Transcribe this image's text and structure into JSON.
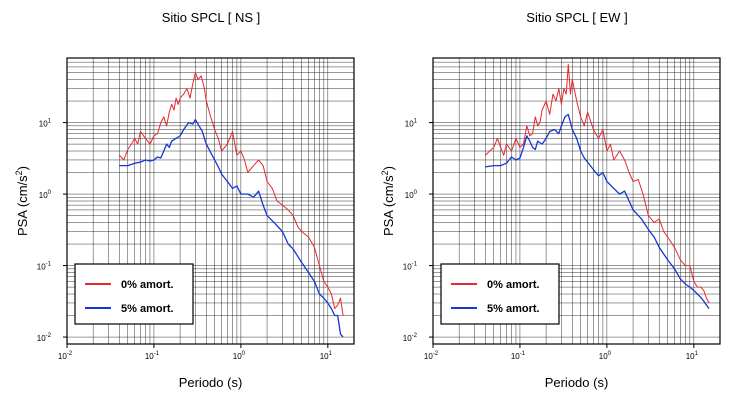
{
  "chart_data": [
    {
      "type": "line",
      "title": "Sitio SPCL [ NS ]",
      "title_parts": {
        "main": "Sitio SPCL [ NS ]"
      },
      "xlabel": "Periodo (s)",
      "ylabel": {
        "text": "PSA (cm/s",
        "sup": "2",
        "close": ")"
      },
      "x_scale": "log",
      "y_scale": "log",
      "xlim": [
        0.01,
        20
      ],
      "ylim": [
        0.008,
        80
      ],
      "grid": true,
      "legend_position": "bottom-left",
      "x_ticks": [
        {
          "base": "10",
          "exp": "-2"
        },
        {
          "base": "10",
          "exp": "-1"
        },
        {
          "base": "10",
          "exp": "0"
        },
        {
          "base": "10",
          "exp": "1"
        }
      ],
      "y_ticks": [
        {
          "base": "10",
          "exp": "-2"
        },
        {
          "base": "10",
          "exp": "-1"
        },
        {
          "base": "10",
          "exp": "0"
        },
        {
          "base": "10",
          "exp": "1"
        }
      ],
      "series": [
        {
          "name": "0% amort.",
          "color": "#e8262d",
          "x": [
            0.04,
            0.045,
            0.05,
            0.055,
            0.06,
            0.065,
            0.07,
            0.08,
            0.09,
            0.1,
            0.11,
            0.12,
            0.13,
            0.14,
            0.15,
            0.16,
            0.17,
            0.18,
            0.19,
            0.2,
            0.22,
            0.24,
            0.26,
            0.28,
            0.3,
            0.32,
            0.35,
            0.38,
            0.4,
            0.45,
            0.5,
            0.55,
            0.6,
            0.7,
            0.8,
            0.9,
            1.0,
            1.1,
            1.2,
            1.4,
            1.6,
            1.8,
            2.0,
            2.3,
            2.6,
            3.0,
            3.5,
            4.0,
            4.5,
            5.0,
            6.0,
            7.0,
            8.0,
            9.0,
            10.0,
            11.0,
            12.0,
            13.0,
            14.0,
            15.0
          ],
          "y": [
            3.5,
            3.0,
            4.2,
            5.0,
            6.0,
            5.0,
            7.5,
            6.0,
            5.0,
            6.5,
            7.0,
            10.0,
            12.0,
            9.0,
            14.0,
            18.0,
            15.0,
            22.0,
            18.0,
            22.0,
            25.0,
            30.0,
            22.0,
            35.0,
            50.0,
            40.0,
            45.0,
            30.0,
            20.0,
            12.0,
            8.0,
            6.0,
            4.0,
            5.0,
            7.5,
            3.5,
            4.0,
            3.0,
            2.0,
            2.5,
            3.0,
            2.5,
            1.5,
            1.2,
            0.8,
            0.7,
            0.6,
            0.5,
            0.35,
            0.3,
            0.25,
            0.18,
            0.1,
            0.06,
            0.05,
            0.04,
            0.025,
            0.028,
            0.035,
            0.02
          ]
        },
        {
          "name": "5% amort.",
          "color": "#1437d6",
          "x": [
            0.04,
            0.05,
            0.06,
            0.07,
            0.08,
            0.09,
            0.1,
            0.11,
            0.12,
            0.13,
            0.14,
            0.15,
            0.16,
            0.18,
            0.2,
            0.22,
            0.25,
            0.28,
            0.3,
            0.33,
            0.36,
            0.4,
            0.45,
            0.5,
            0.55,
            0.6,
            0.7,
            0.8,
            0.9,
            1.0,
            1.2,
            1.4,
            1.6,
            1.8,
            2.0,
            2.5,
            3.0,
            3.5,
            4.0,
            5.0,
            6.0,
            7.0,
            8.0,
            9.0,
            10.0,
            11.0,
            12.0,
            13.0,
            14.0,
            15.0
          ],
          "y": [
            2.5,
            2.5,
            2.7,
            2.8,
            3.0,
            2.9,
            3.0,
            3.3,
            3.2,
            4.0,
            5.0,
            4.5,
            5.5,
            6.0,
            6.5,
            8.0,
            10.0,
            9.5,
            11.0,
            9.0,
            7.5,
            5.0,
            3.8,
            3.0,
            2.4,
            1.9,
            1.5,
            1.2,
            1.3,
            1.0,
            1.0,
            0.9,
            1.1,
            0.7,
            0.5,
            0.38,
            0.3,
            0.2,
            0.17,
            0.11,
            0.08,
            0.06,
            0.04,
            0.035,
            0.03,
            0.025,
            0.02,
            0.02,
            0.011,
            0.01
          ]
        }
      ]
    },
    {
      "type": "line",
      "title": "Sitio SPCL [ EW ]",
      "title_parts": {
        "main": "Sitio SPCL [ EW ]"
      },
      "xlabel": "Periodo (s)",
      "ylabel": {
        "text": "PSA (cm/s",
        "sup": "2",
        "close": ")"
      },
      "x_scale": "log",
      "y_scale": "log",
      "xlim": [
        0.01,
        20
      ],
      "ylim": [
        0.008,
        80
      ],
      "grid": true,
      "legend_position": "bottom-left",
      "x_ticks": [
        {
          "base": "10",
          "exp": "-2"
        },
        {
          "base": "10",
          "exp": "-1"
        },
        {
          "base": "10",
          "exp": "0"
        },
        {
          "base": "10",
          "exp": "1"
        }
      ],
      "y_ticks": [
        {
          "base": "10",
          "exp": "-2"
        },
        {
          "base": "10",
          "exp": "-1"
        },
        {
          "base": "10",
          "exp": "0"
        },
        {
          "base": "10",
          "exp": "1"
        }
      ],
      "series": [
        {
          "name": "0% amort.",
          "color": "#e8262d",
          "x": [
            0.04,
            0.045,
            0.05,
            0.055,
            0.06,
            0.065,
            0.07,
            0.08,
            0.09,
            0.1,
            0.11,
            0.12,
            0.13,
            0.14,
            0.15,
            0.16,
            0.17,
            0.18,
            0.2,
            0.22,
            0.24,
            0.26,
            0.28,
            0.3,
            0.32,
            0.34,
            0.36,
            0.38,
            0.4,
            0.45,
            0.5,
            0.55,
            0.6,
            0.7,
            0.8,
            0.9,
            1.0,
            1.1,
            1.2,
            1.4,
            1.6,
            1.8,
            2.0,
            2.3,
            2.6,
            3.0,
            3.5,
            4.0,
            4.5,
            5.0,
            6.0,
            7.0,
            8.0,
            9.0,
            10.0,
            11.0,
            12.0,
            13.0,
            14.0,
            15.0
          ],
          "y": [
            3.5,
            4.0,
            4.5,
            6.0,
            4.5,
            3.5,
            5.0,
            4.0,
            6.0,
            4.5,
            5.0,
            9.0,
            6.5,
            7.0,
            12.0,
            9.0,
            10.0,
            15.0,
            20.0,
            13.0,
            25.0,
            20.0,
            30.0,
            18.0,
            30.0,
            25.0,
            65.0,
            25.0,
            40.0,
            20.0,
            12.0,
            9.0,
            14.0,
            8.0,
            6.0,
            8.0,
            4.0,
            5.0,
            3.0,
            4.0,
            3.0,
            2.0,
            1.5,
            1.6,
            1.0,
            0.5,
            0.4,
            0.45,
            0.3,
            0.25,
            0.18,
            0.12,
            0.1,
            0.1,
            0.06,
            0.05,
            0.05,
            0.045,
            0.035,
            0.03
          ]
        },
        {
          "name": "5% amort.",
          "color": "#1437d6",
          "x": [
            0.04,
            0.05,
            0.06,
            0.07,
            0.08,
            0.09,
            0.1,
            0.11,
            0.12,
            0.13,
            0.14,
            0.15,
            0.16,
            0.18,
            0.2,
            0.22,
            0.25,
            0.28,
            0.3,
            0.33,
            0.36,
            0.4,
            0.45,
            0.5,
            0.55,
            0.6,
            0.7,
            0.8,
            0.9,
            1.0,
            1.2,
            1.4,
            1.6,
            1.8,
            2.0,
            2.5,
            3.0,
            3.5,
            4.0,
            5.0,
            6.0,
            7.0,
            8.0,
            9.0,
            10.0,
            11.0,
            12.0,
            13.0,
            14.0,
            15.0
          ],
          "y": [
            2.4,
            2.5,
            2.5,
            2.7,
            3.3,
            3.0,
            3.2,
            4.5,
            6.5,
            5.5,
            4.5,
            4.2,
            5.5,
            5.0,
            6.0,
            7.5,
            8.0,
            7.0,
            9.0,
            12.0,
            13.0,
            8.0,
            6.0,
            4.0,
            3.2,
            2.8,
            2.2,
            1.8,
            2.0,
            1.5,
            1.2,
            1.0,
            1.1,
            0.8,
            0.6,
            0.45,
            0.32,
            0.25,
            0.18,
            0.12,
            0.09,
            0.065,
            0.055,
            0.05,
            0.045,
            0.04,
            0.036,
            0.032,
            0.028,
            0.025
          ]
        }
      ]
    }
  ]
}
